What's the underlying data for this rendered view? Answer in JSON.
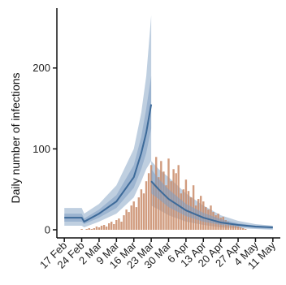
{
  "chart_data": {
    "type": "bar",
    "title": "",
    "ylabel": "Daily number of infections",
    "xlabel": "",
    "ylim": [
      0,
      270
    ],
    "yticks": [
      0,
      100,
      200
    ],
    "xlim": [
      "2020-02-14",
      "2020-05-14"
    ],
    "xticks": [
      "17 Feb",
      "24 Feb",
      "2 Mar",
      "9 Mar",
      "16 Mar",
      "23 Mar",
      "30 Mar",
      "6 Apr",
      "13 Apr",
      "20 Apr",
      "27 Apr",
      "4 May",
      "11 May"
    ],
    "xtick_dates": [
      "2020-02-17",
      "2020-02-24",
      "2020-03-02",
      "2020-03-09",
      "2020-03-16",
      "2020-03-23",
      "2020-03-30",
      "2020-04-06",
      "2020-04-13",
      "2020-04-20",
      "2020-04-27",
      "2020-05-04",
      "2020-05-11"
    ],
    "grid": false,
    "legend": "none",
    "colors": {
      "observed_bars": "#c98b69",
      "band_outer": "#a9bfd6",
      "band_inner": "#7f9fc2",
      "median_line": "#3d6a99"
    },
    "observed": {
      "name": "",
      "dates": [
        "2020-02-24",
        "2020-02-25",
        "2020-02-26",
        "2020-02-27",
        "2020-02-28",
        "2020-02-29",
        "2020-03-01",
        "2020-03-02",
        "2020-03-03",
        "2020-03-04",
        "2020-03-05",
        "2020-03-06",
        "2020-03-07",
        "2020-03-08",
        "2020-03-09",
        "2020-03-10",
        "2020-03-11",
        "2020-03-12",
        "2020-03-13",
        "2020-03-14",
        "2020-03-15",
        "2020-03-16",
        "2020-03-17",
        "2020-03-18",
        "2020-03-19",
        "2020-03-20",
        "2020-03-21",
        "2020-03-22",
        "2020-03-23",
        "2020-03-24",
        "2020-03-25",
        "2020-03-26",
        "2020-03-27",
        "2020-03-28",
        "2020-03-29",
        "2020-03-30",
        "2020-03-31",
        "2020-04-01",
        "2020-04-02",
        "2020-04-03",
        "2020-04-04",
        "2020-04-05",
        "2020-04-06",
        "2020-04-07",
        "2020-04-08",
        "2020-04-09",
        "2020-04-10",
        "2020-04-11",
        "2020-04-12",
        "2020-04-13",
        "2020-04-14",
        "2020-04-15",
        "2020-04-16",
        "2020-04-17",
        "2020-04-18",
        "2020-04-19",
        "2020-04-20",
        "2020-04-21",
        "2020-04-22",
        "2020-04-23",
        "2020-04-24",
        "2020-04-25",
        "2020-04-26",
        "2020-04-27",
        "2020-04-28",
        "2020-04-29",
        "2020-04-30"
      ],
      "values": [
        1,
        0,
        1,
        2,
        1,
        2,
        4,
        3,
        5,
        6,
        4,
        8,
        10,
        7,
        12,
        14,
        10,
        18,
        25,
        22,
        30,
        35,
        28,
        40,
        50,
        45,
        60,
        70,
        80,
        58,
        90,
        65,
        85,
        72,
        55,
        88,
        60,
        75,
        70,
        80,
        45,
        50,
        62,
        48,
        40,
        55,
        30,
        38,
        42,
        35,
        28,
        25,
        30,
        22,
        18,
        20,
        15,
        16,
        12,
        10,
        8,
        6,
        5,
        4,
        3,
        2,
        1
      ]
    },
    "model_pre": {
      "name": "",
      "dates": [
        "2020-02-17",
        "2020-02-24",
        "2020-02-25",
        "2020-03-02",
        "2020-03-09",
        "2020-03-16",
        "2020-03-19",
        "2020-03-21",
        "2020-03-23"
      ],
      "median": [
        15,
        15,
        10,
        20,
        35,
        65,
        95,
        120,
        155
      ],
      "inner_low": [
        10,
        10,
        7,
        15,
        27,
        52,
        75,
        95,
        125
      ],
      "inner_high": [
        20,
        20,
        14,
        25,
        43,
        80,
        115,
        150,
        190
      ],
      "outer_low": [
        5,
        5,
        3,
        10,
        20,
        40,
        60,
        75,
        85
      ],
      "outer_high": [
        27,
        27,
        20,
        32,
        55,
        100,
        145,
        190,
        265
      ]
    },
    "model_post": {
      "name": "",
      "dates": [
        "2020-03-23",
        "2020-03-26",
        "2020-03-30",
        "2020-04-06",
        "2020-04-13",
        "2020-04-20",
        "2020-04-27",
        "2020-05-04",
        "2020-05-11"
      ],
      "median": [
        60,
        50,
        38,
        24,
        15,
        9,
        6,
        4,
        3
      ],
      "inner_low": [
        45,
        38,
        28,
        17,
        10,
        6,
        4,
        2,
        1
      ],
      "inner_high": [
        75,
        63,
        50,
        32,
        21,
        13,
        8,
        5,
        4
      ],
      "outer_low": [
        30,
        25,
        18,
        10,
        6,
        3,
        2,
        1,
        0
      ],
      "outer_high": [
        85,
        75,
        65,
        45,
        30,
        18,
        11,
        7,
        5
      ]
    }
  }
}
